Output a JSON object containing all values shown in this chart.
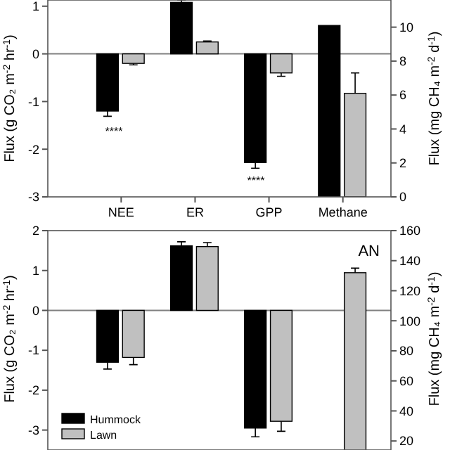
{
  "chart_data": [
    {
      "type": "bar",
      "categories": [
        "NEE",
        "ER",
        "GPP",
        "Methane"
      ],
      "ylabel": "Flux (g CO₂ m$^{-2}$ hr$^{-1}$)",
      "y2label": "Flux (mg CH₄ m$^{-2}$ d$^{-1}$)",
      "ylim": [
        -3,
        1.13
      ],
      "yticks": [
        -3,
        -2,
        -1,
        0,
        1
      ],
      "y2lim": [
        0,
        11.6
      ],
      "y2ticks": [
        0,
        2,
        4,
        6,
        8,
        10
      ],
      "series": [
        {
          "color": "#000000",
          "values": [
            -1.2,
            1.08,
            -2.28,
            null
          ],
          "errors": [
            0.11,
            0.05,
            0.12,
            null
          ]
        },
        {
          "color": "#c0c0c0",
          "values": [
            -0.2,
            0.25,
            -0.4,
            null
          ],
          "errors": [
            0.03,
            0.02,
            0.07,
            null
          ]
        },
        {
          "color": "#000000",
          "axis": "y2",
          "values": [
            null,
            null,
            null,
            10.1
          ],
          "errors": [
            null,
            null,
            null,
            null
          ]
        },
        {
          "color": "#c0c0c0",
          "axis": "y2",
          "values": [
            null,
            null,
            null,
            6.1
          ],
          "errors": [
            null,
            null,
            null,
            1.2
          ]
        }
      ],
      "ref_lines": [
        {
          "axis": "y",
          "value": 0,
          "color": "#808080"
        }
      ],
      "annotations": [
        "****",
        "****"
      ],
      "legend": false
    },
    {
      "type": "bar",
      "categories": [
        null,
        null,
        null,
        null
      ],
      "ylabel": "Flux (g CO₂ m$^{-2}$ hr$^{-1}$)",
      "y2label": "Flux (mg CH₄ m$^{-2}$ d$^{-1}$)",
      "ylim": [
        -3.5,
        2
      ],
      "yticks": [
        -3,
        -2,
        -1,
        0,
        1,
        2
      ],
      "y2lim": [
        14,
        160
      ],
      "y2ticks": [
        20,
        40,
        60,
        80,
        100,
        120,
        140,
        160
      ],
      "series": [
        {
          "name": "Hummock",
          "color": "#000000",
          "values": [
            -1.3,
            1.62,
            -2.95,
            null
          ],
          "errors": [
            0.17,
            0.1,
            0.22,
            null
          ]
        },
        {
          "name": "Lawn",
          "color": "#c0c0c0",
          "values": [
            -1.18,
            1.6,
            -2.78,
            null
          ],
          "errors": [
            0.18,
            0.1,
            0.25,
            null
          ]
        },
        {
          "color": "#c0c0c0",
          "axis": "y2",
          "values": [
            null,
            null,
            null,
            132
          ],
          "errors": [
            null,
            null,
            null,
            3
          ]
        }
      ],
      "ref_lines": [
        {
          "axis": "y",
          "value": 0,
          "color": "#808080"
        }
      ],
      "annotations": [
        "AN"
      ],
      "legend": "bottom left"
    }
  ]
}
